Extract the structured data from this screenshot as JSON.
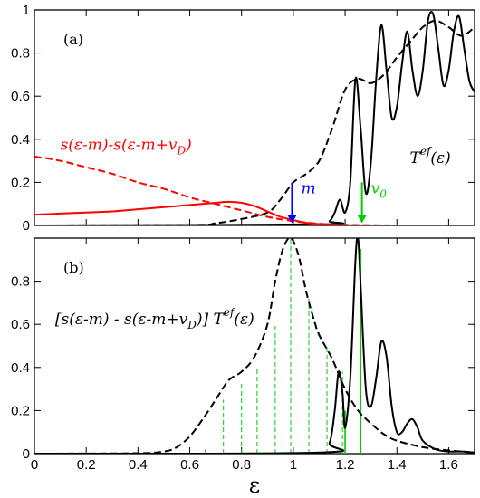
{
  "chart_data": [
    {
      "type": "line",
      "panel_label": "(a)",
      "xlim": [
        0,
        1.7
      ],
      "ylim": [
        0,
        1
      ],
      "x_ticks": [
        0,
        0.2,
        0.4,
        0.6,
        0.8,
        1,
        1.2,
        1.4,
        1.6
      ],
      "x_tick_labels": [
        "",
        "",
        "",
        "",
        "",
        "",
        "",
        "",
        ""
      ],
      "y_ticks": [
        0,
        0.2,
        0.4,
        0.6,
        0.8,
        1
      ],
      "y_tick_labels": [
        "0",
        "0.2",
        "0.4",
        "0.6",
        "0.8",
        "1"
      ],
      "series": [
        {
          "style": "solid",
          "color": "#000000",
          "x": [
            0,
            1.1,
            1.14,
            1.16,
            1.18,
            1.2,
            1.22,
            1.24,
            1.26,
            1.28,
            1.3,
            1.32,
            1.34,
            1.36,
            1.38,
            1.4,
            1.42,
            1.44,
            1.46,
            1.48,
            1.5,
            1.52,
            1.54,
            1.56,
            1.58,
            1.6,
            1.62,
            1.64,
            1.66,
            1.68,
            1.7
          ],
          "y": [
            0,
            0.005,
            0.02,
            0.06,
            0.12,
            0.06,
            0.2,
            0.68,
            0.45,
            0.15,
            0.3,
            0.68,
            0.93,
            0.72,
            0.5,
            0.55,
            0.75,
            0.9,
            0.72,
            0.6,
            0.72,
            0.95,
            0.98,
            0.82,
            0.65,
            0.72,
            0.9,
            0.97,
            0.82,
            0.67,
            0.62
          ]
        },
        {
          "style": "dashed",
          "color": "#000000",
          "x": [
            0,
            0.6,
            0.7,
            0.8,
            0.9,
            0.95,
            1,
            1.05,
            1.1,
            1.15,
            1.2,
            1.25,
            1.3,
            1.35,
            1.4,
            1.45,
            1.5,
            1.55,
            1.6,
            1.65,
            1.7
          ],
          "y": [
            0,
            0.002,
            0.01,
            0.03,
            0.06,
            0.12,
            0.2,
            0.24,
            0.3,
            0.45,
            0.63,
            0.68,
            0.66,
            0.7,
            0.78,
            0.85,
            0.92,
            0.95,
            0.92,
            0.88,
            0.92
          ]
        },
        {
          "style": "dashed",
          "color": "#ff0000",
          "x": [
            0,
            0.1,
            0.2,
            0.3,
            0.4,
            0.5,
            0.6,
            0.7,
            0.8,
            0.9,
            1,
            1.1,
            1.2,
            1.3,
            1.4,
            1.5,
            1.6,
            1.7
          ],
          "y": [
            0.32,
            0.3,
            0.27,
            0.24,
            0.2,
            0.17,
            0.13,
            0.1,
            0.07,
            0.04,
            0.02,
            0.008,
            0.003,
            0.001,
            0,
            0,
            0,
            0
          ]
        },
        {
          "style": "solid",
          "color": "#ff0000",
          "x": [
            0,
            0.1,
            0.2,
            0.3,
            0.4,
            0.5,
            0.6,
            0.7,
            0.75,
            0.8,
            0.85,
            0.9,
            0.95,
            1,
            1.05,
            1.1,
            1.15,
            1.2,
            1.3,
            1.4,
            1.5,
            1.6,
            1.7
          ],
          "y": [
            0.05,
            0.055,
            0.06,
            0.065,
            0.075,
            0.085,
            0.095,
            0.105,
            0.11,
            0.105,
            0.09,
            0.065,
            0.04,
            0.025,
            0.012,
            0.006,
            0.003,
            0.001,
            0,
            0,
            0,
            0,
            0
          ]
        }
      ],
      "annotations": [
        {
          "id": "ann-red-formula",
          "text": "s(ε-m)-s(ε-m+v",
          "sub": "D",
          "suffix": ")",
          "color": "#ff0000",
          "x": 0.1,
          "y": 0.35
        },
        {
          "id": "ann-transmission",
          "text": "T",
          "sup": "ef",
          "suffix": "(ε)",
          "color": "#000000",
          "x": 1.45,
          "y": 0.29
        }
      ],
      "arrows": [
        {
          "id": "arrow-m",
          "label": "m",
          "color": "#0000ff",
          "x": 0.995,
          "y_from": 0.2,
          "y_to": 0.01
        },
        {
          "id": "arrow-v0",
          "label": "v",
          "label_sub": "0",
          "color": "#00cc00",
          "x": 1.265,
          "y_from": 0.2,
          "y_to": 0.01
        }
      ]
    },
    {
      "type": "line",
      "panel_label": "(b)",
      "xlim": [
        0,
        1.7
      ],
      "ylim": [
        0,
        1
      ],
      "x_ticks": [
        0,
        0.2,
        0.4,
        0.6,
        0.8,
        1,
        1.2,
        1.4,
        1.6
      ],
      "x_tick_labels": [
        "0",
        "0.2",
        "0.4",
        "0.6",
        "0.8",
        "1",
        "1.2",
        "1.4",
        "1.6"
      ],
      "y_ticks": [
        0,
        0.2,
        0.4,
        0.6,
        0.8,
        1
      ],
      "y_tick_labels": [
        "0",
        "0.2",
        "0.4",
        "0.6",
        "0.8",
        ""
      ],
      "xlabel": "ε",
      "series": [
        {
          "style": "dashed",
          "color": "#000000",
          "x": [
            0,
            0.4,
            0.5,
            0.55,
            0.6,
            0.65,
            0.7,
            0.75,
            0.8,
            0.85,
            0.9,
            0.93,
            0.96,
            0.99,
            1.02,
            1.05,
            1.08,
            1.1,
            1.15,
            1.2,
            1.25,
            1.3,
            1.35,
            1.4,
            1.5,
            1.6,
            1.7
          ],
          "y": [
            0,
            0.002,
            0.01,
            0.03,
            0.08,
            0.16,
            0.25,
            0.34,
            0.38,
            0.45,
            0.6,
            0.8,
            0.95,
            1.0,
            0.92,
            0.75,
            0.62,
            0.55,
            0.44,
            0.3,
            0.2,
            0.14,
            0.09,
            0.06,
            0.03,
            0.015,
            0.005
          ]
        },
        {
          "style": "solid",
          "color": "#000000",
          "x": [
            0,
            1.1,
            1.14,
            1.16,
            1.175,
            1.19,
            1.2,
            1.22,
            1.24,
            1.25,
            1.26,
            1.28,
            1.3,
            1.32,
            1.34,
            1.36,
            1.38,
            1.4,
            1.42,
            1.44,
            1.46,
            1.48,
            1.5,
            1.55,
            1.6,
            1.65,
            1.7
          ],
          "y": [
            0,
            0.005,
            0.05,
            0.2,
            0.38,
            0.28,
            0.12,
            0.35,
            0.9,
            1.0,
            0.78,
            0.3,
            0.22,
            0.35,
            0.52,
            0.45,
            0.22,
            0.1,
            0.1,
            0.14,
            0.16,
            0.12,
            0.06,
            0.02,
            0.01,
            0.01,
            0.005
          ]
        }
      ],
      "vlines_dashed": {
        "color": "#00cc00",
        "x": [
          0.66,
          0.73,
          0.8,
          0.86,
          0.93,
          0.99,
          1.06,
          1.13,
          1.19
        ],
        "y_top": [
          0.02,
          0.25,
          0.33,
          0.4,
          0.6,
          1.0,
          0.72,
          0.5,
          0.38
        ]
      },
      "vlines_solid": {
        "color": "#00cc00",
        "x": [
          1.2,
          1.26
        ],
        "y_top": [
          0.2,
          0.95
        ]
      },
      "annotations": [
        {
          "id": "ann-product",
          "text": "[s(ε-m) - s(ε-m+v",
          "sub": "D",
          "suffix": ")] T",
          "sup2": "ef",
          "suffix2": "(ε)",
          "color": "#000000",
          "x": 0.08,
          "y": 0.6
        }
      ]
    }
  ]
}
